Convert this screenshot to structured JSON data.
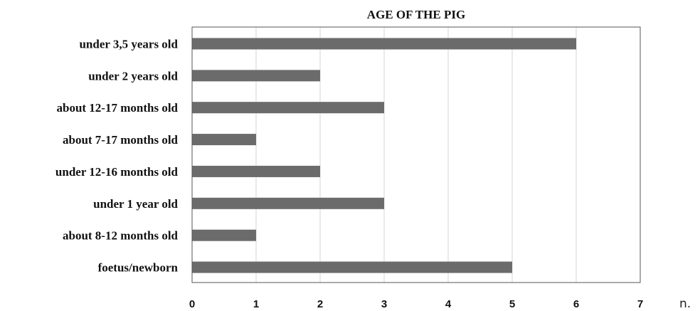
{
  "chart_data": {
    "type": "bar",
    "orientation": "horizontal",
    "title": "AGE OF THE PIG",
    "categories": [
      "under 3,5 years old",
      "under 2 years old",
      "about 12-17 months old",
      "about 7-17 months old",
      "under 12-16 months old",
      "under 1 year old",
      "about 8-12 months old",
      "foetus/newborn"
    ],
    "values": [
      6,
      2,
      3,
      1,
      2,
      3,
      1,
      5
    ],
    "xlabel": "n.",
    "ylabel": "",
    "xlim": [
      0,
      7
    ],
    "xticks": [
      "0",
      "1",
      "2",
      "3",
      "4",
      "5",
      "6",
      "7"
    ],
    "grid": true,
    "bar_color": "#6b6b6b"
  }
}
